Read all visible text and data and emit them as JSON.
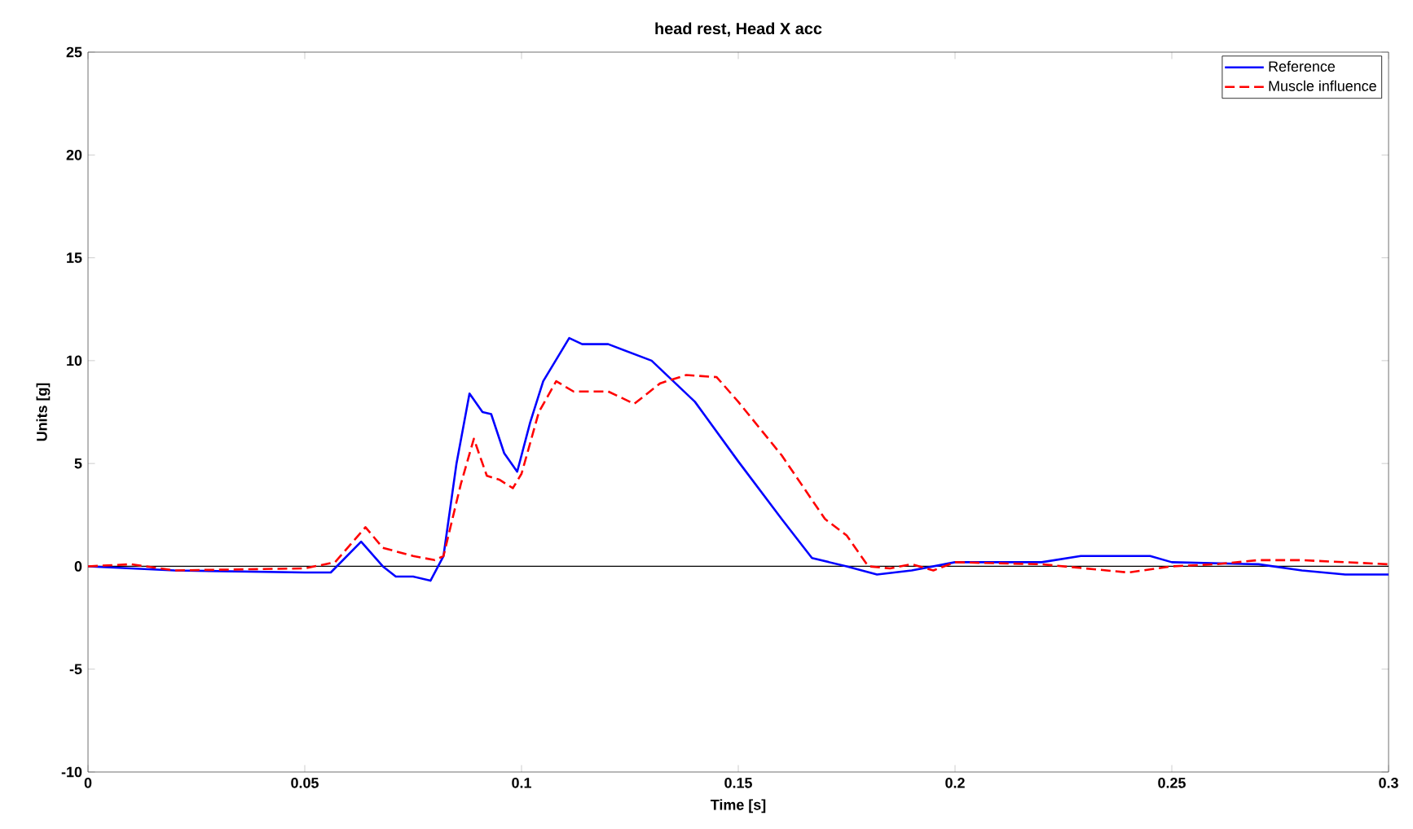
{
  "chart_data": {
    "type": "line",
    "title": "head rest, Head X acc",
    "xlabel": "Time [s]",
    "ylabel": "Units [g]",
    "xlim": [
      0,
      0.3
    ],
    "ylim": [
      -10,
      25
    ],
    "xticks": [
      0,
      0.05,
      0.1,
      0.15,
      0.2,
      0.25,
      0.3
    ],
    "yticks": [
      -10,
      -5,
      0,
      5,
      10,
      15,
      20,
      25
    ],
    "grid": false,
    "legend": "top right",
    "marker": "none",
    "ref_lines": [
      {
        "axis": "y",
        "value": 0,
        "color": "#000000"
      }
    ],
    "series": [
      {
        "name": "Reference",
        "color": "#0000ff",
        "line_style": "solid",
        "x": [
          0,
          0.02,
          0.05,
          0.056,
          0.063,
          0.068,
          0.071,
          0.075,
          0.079,
          0.082,
          0.085,
          0.088,
          0.091,
          0.093,
          0.096,
          0.099,
          0.102,
          0.105,
          0.111,
          0.114,
          0.12,
          0.13,
          0.14,
          0.15,
          0.16,
          0.167,
          0.175,
          0.182,
          0.19,
          0.2,
          0.22,
          0.229,
          0.245,
          0.25,
          0.27,
          0.28,
          0.29,
          0.3
        ],
        "values": [
          0,
          -0.2,
          -0.3,
          -0.3,
          1.2,
          0,
          -0.5,
          -0.5,
          -0.7,
          0.5,
          5,
          8.4,
          7.5,
          7.4,
          5.5,
          4.6,
          7,
          9,
          11.1,
          10.8,
          10.8,
          10,
          8,
          5.1,
          2.3,
          0.4,
          0,
          -0.4,
          -0.2,
          0.2,
          0.2,
          0.5,
          0.5,
          0.2,
          0.1,
          -0.2,
          -0.4,
          -0.4
        ]
      },
      {
        "name": "Muscle influence",
        "color": "#ff0000",
        "line_style": "dashed",
        "x": [
          0,
          0.01,
          0.02,
          0.05,
          0.057,
          0.064,
          0.068,
          0.075,
          0.08,
          0.082,
          0.086,
          0.089,
          0.092,
          0.095,
          0.098,
          0.1,
          0.104,
          0.108,
          0.112,
          0.12,
          0.126,
          0.132,
          0.138,
          0.145,
          0.15,
          0.16,
          0.17,
          0.175,
          0.18,
          0.185,
          0.19,
          0.195,
          0.2,
          0.22,
          0.23,
          0.24,
          0.25,
          0.26,
          0.27,
          0.28,
          0.3
        ],
        "values": [
          0,
          0.1,
          -0.2,
          -0.1,
          0.2,
          1.9,
          0.9,
          0.5,
          0.3,
          0.5,
          4,
          6.2,
          4.4,
          4.2,
          3.8,
          4.5,
          7.5,
          9,
          8.5,
          8.5,
          7.9,
          8.9,
          9.3,
          9.2,
          8,
          5.4,
          2.3,
          1.5,
          0,
          -0.1,
          0.1,
          -0.2,
          0.2,
          0.1,
          -0.1,
          -0.3,
          0,
          0.1,
          0.3,
          0.3,
          0.1
        ]
      }
    ]
  }
}
